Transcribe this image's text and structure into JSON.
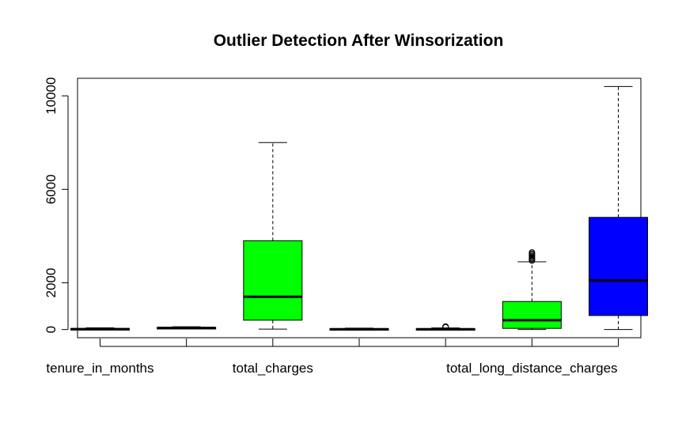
{
  "chart_data": {
    "type": "boxplot",
    "title": "Outlier Detection After Winsorization",
    "xlabel": "",
    "ylabel": "",
    "ylim": [
      -350,
      10750
    ],
    "y_ticks": [
      0,
      2000,
      6000,
      10000
    ],
    "x_tick_labels": [
      "tenure_in_months",
      "",
      "total_charges",
      "",
      "",
      "total_long_distance_charges",
      ""
    ],
    "grid": false,
    "boxes": [
      {
        "position": 1,
        "min": 0,
        "q1": 5,
        "median": 20,
        "q3": 45,
        "max": 72,
        "color": "#00ff00",
        "outliers": []
      },
      {
        "position": 2,
        "min": 30,
        "q1": 40,
        "median": 70,
        "q3": 90,
        "max": 120,
        "color": "#00ff00",
        "outliers": []
      },
      {
        "position": 3,
        "min": 20,
        "q1": 400,
        "median": 1400,
        "q3": 3800,
        "max": 8000,
        "color": "#00ff00",
        "outliers": []
      },
      {
        "position": 4,
        "min": 0,
        "q1": 5,
        "median": 15,
        "q3": 40,
        "max": 60,
        "color": "#00ff00",
        "outliers": []
      },
      {
        "position": 5,
        "min": 0,
        "q1": 5,
        "median": 15,
        "q3": 40,
        "max": 70,
        "color": "#00ff00",
        "outliers": [
          100,
          110,
          120,
          130
        ]
      },
      {
        "position": 6,
        "min": 0,
        "q1": 50,
        "median": 400,
        "q3": 1200,
        "max": 2900,
        "color": "#00ff00",
        "outliers": [
          2950,
          3000,
          3050,
          3100,
          3150,
          3200,
          3250,
          3300
        ]
      },
      {
        "position": 7,
        "min": 0,
        "q1": 600,
        "median": 2100,
        "q3": 4800,
        "max": 10400,
        "color": "#0000ff",
        "outliers": []
      }
    ]
  }
}
